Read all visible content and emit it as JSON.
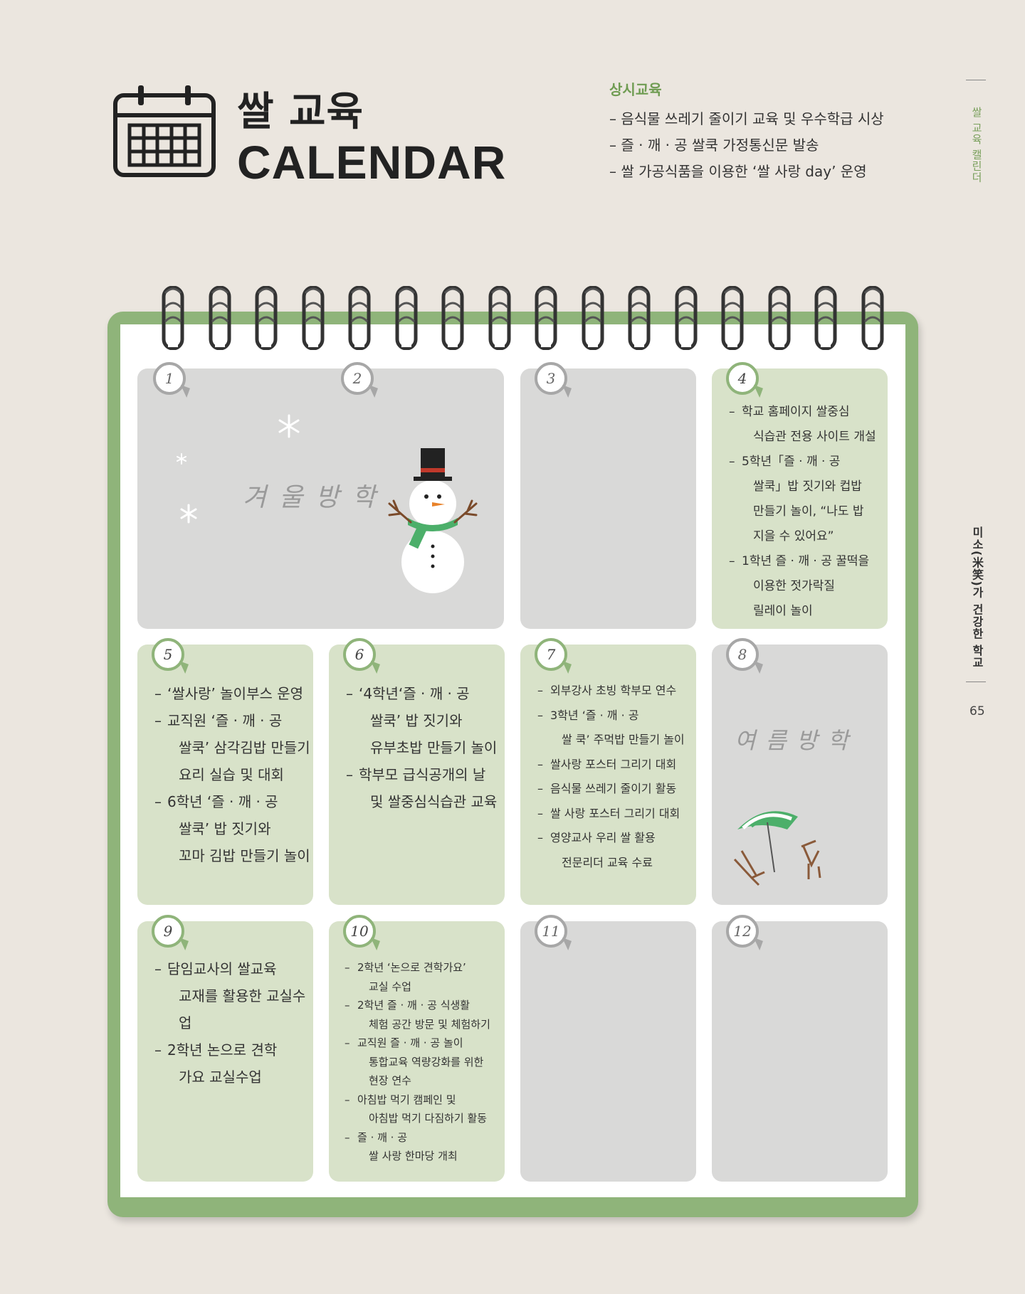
{
  "header": {
    "title_ko": "쌀 교육",
    "title_en": "CALENDAR"
  },
  "ongoing": {
    "title": "상시교육",
    "items": [
      "– 음식물 쓰레기 줄이기 교육 및 우수학급 시상",
      "– 즐 · 깨 · 공 쌀쿡 가정통신문 발송",
      "– 쌀 가공식품을 이용한 ‘쌀 사랑 day’ 운영"
    ]
  },
  "side": {
    "section": "쌀 교육 캘린더",
    "book": "미소(米笑)가 건강한 학교",
    "page": "65"
  },
  "months": {
    "m1": "1",
    "m2": "2",
    "m3": "3",
    "m4": "4",
    "m5": "5",
    "m6": "6",
    "m7": "7",
    "m8": "8",
    "m9": "9",
    "m10": "10",
    "m11": "11",
    "m12": "12"
  },
  "winter_vacation": "겨울방학",
  "summer_vacation": "여름방학",
  "april": {
    "items": [
      [
        "학교 홈페이지 쌀중심",
        "식습관 전용 사이트 개설"
      ],
      [
        "5학년「즐 · 깨 · 공",
        "쌀쿡」밥 짓기와 컵밥",
        "만들기 놀이, “나도 밥",
        "지을 수 있어요”"
      ],
      [
        "1학년 즐 · 깨 · 공 꿀떡을",
        "이용한 젓가락질",
        "릴레이 놀이"
      ]
    ]
  },
  "may": {
    "items": [
      [
        "‘쌀사랑’ 놀이부스 운영"
      ],
      [
        "교직원 ‘즐 · 깨 · 공",
        "쌀쿡’ 삼각김밥 만들기",
        "요리 실습 및 대회"
      ],
      [
        "6학년 ‘즐 · 깨 · 공",
        "쌀쿡’ 밥 짓기와",
        "꼬마 김밥 만들기 놀이"
      ]
    ]
  },
  "june": {
    "items": [
      [
        "‘4학년‘즐 · 깨 · 공",
        "쌀쿡’ 밥 짓기와",
        "유부초밥 만들기 놀이"
      ],
      [
        "학부모 급식공개의 날",
        "및 쌀중심식습관 교육"
      ]
    ]
  },
  "july": {
    "items": [
      [
        "외부강사 초빙 학부모 연수"
      ],
      [
        "3학년 ‘즐 · 깨 · 공",
        "쌀 쿡’ 주먹밥 만들기 놀이"
      ],
      [
        "쌀사랑  포스터 그리기 대회"
      ],
      [
        "음식물 쓰레기 줄이기 활동"
      ],
      [
        "쌀 사랑 포스터 그리기 대회"
      ],
      [
        "영양교사 우리 쌀 활용",
        "전문리더 교육 수료"
      ]
    ]
  },
  "september": {
    "items": [
      [
        "담임교사의 쌀교육",
        "교재를 활용한 교실수업"
      ],
      [
        "2학년 논으로 견학",
        "가요 교실수업"
      ]
    ]
  },
  "october": {
    "items": [
      [
        "2학년 ‘논으로 견학가요’",
        "교실 수업"
      ],
      [
        "2학년 즐 · 깨 · 공 식생활",
        "체험 공간 방문 및 체험하기"
      ],
      [
        "교직원 즐 · 깨 · 공 놀이",
        "통합교육 역량강화를  위한",
        "현장 연수"
      ],
      [
        "아침밥 먹기 캠페인 및",
        "아침밥 먹기 다짐하기 활동"
      ],
      [
        "즐 · 깨 · 공",
        "쌀 사랑 한마당 개최"
      ]
    ]
  },
  "colors": {
    "accent_green": "#8fb47a",
    "cell_green": "#d8e2c9",
    "cell_gray": "#d9d9d8",
    "background": "#ebe6df"
  }
}
